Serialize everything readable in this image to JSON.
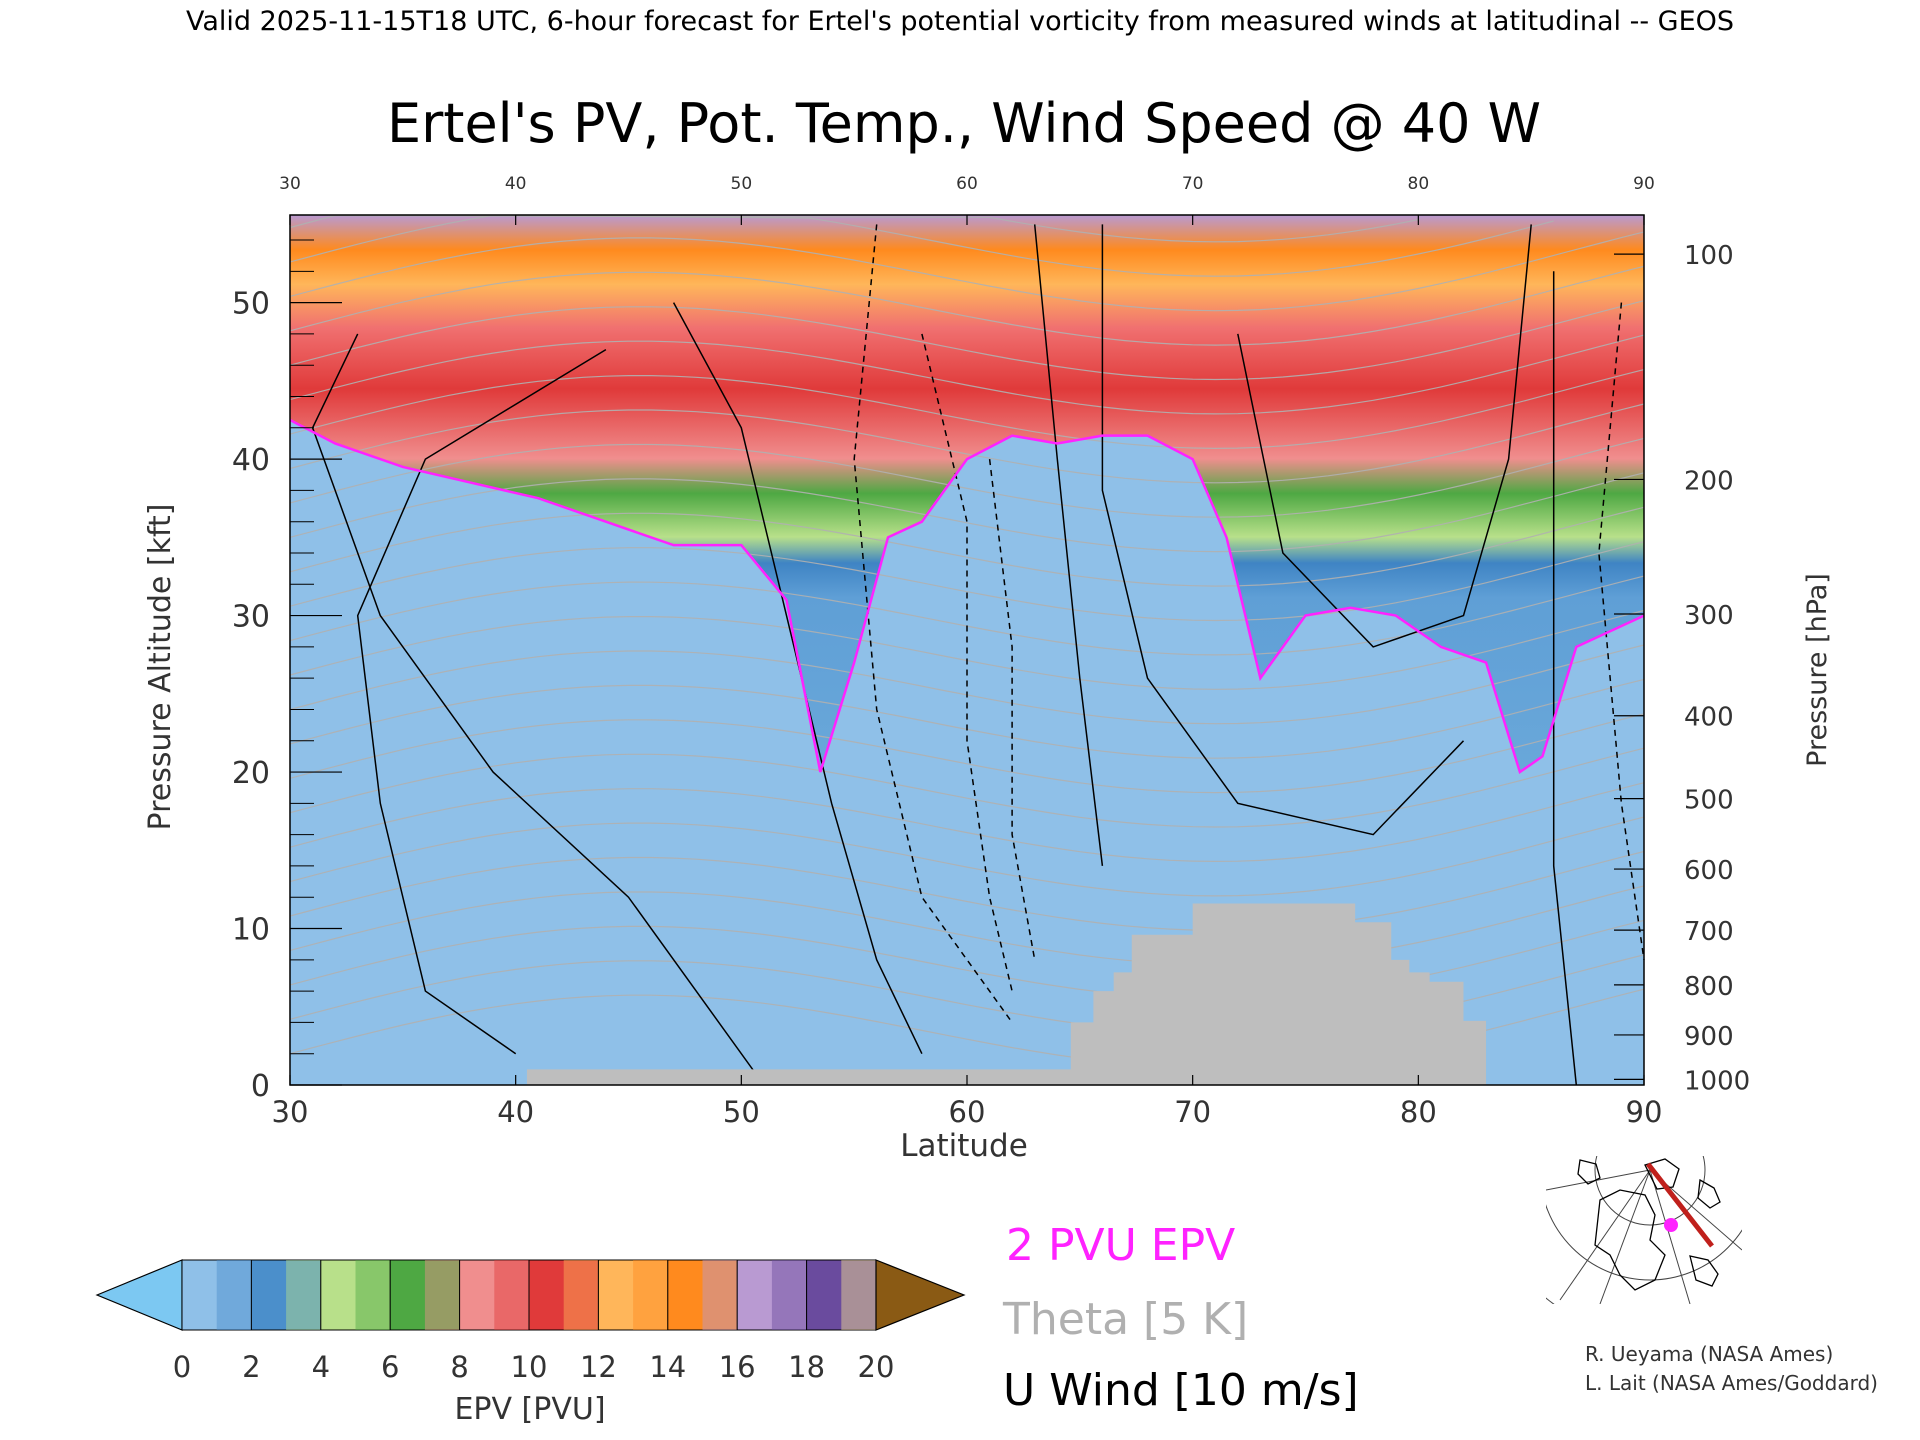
{
  "header": {
    "valid_line": "Valid 2025-11-15T18 UTC, 6-hour forecast for Ertel's potential vorticity from measured winds at latitudinal -- GEOS"
  },
  "chart_data": {
    "type": "heatmap",
    "title": "Ertel's PV, Pot. Temp., Wind Speed @ 40 W",
    "xlabel": "Latitude",
    "ylabel": "Pressure Altitude [kft]",
    "ylabel_right": "Pressure [hPa]",
    "x_range": [
      30,
      90
    ],
    "y_range": [
      0,
      55.6
    ],
    "x_ticks": [
      "30",
      "40",
      "50",
      "60",
      "70",
      "80",
      "90"
    ],
    "y_ticks": [
      "0",
      "10",
      "20",
      "30",
      "40",
      "50"
    ],
    "pressure_ticks": [
      "1000",
      "900",
      "800",
      "700",
      "600",
      "500",
      "400",
      "300",
      "200",
      "100"
    ],
    "pressure_tick_kft": [
      0.36,
      3.2,
      6.4,
      9.9,
      13.8,
      18.3,
      23.6,
      30.1,
      38.7,
      53.1
    ],
    "tropopause_2pvu_kft": {
      "lat": [
        30,
        32,
        35,
        38,
        41,
        44,
        47,
        50,
        52,
        53.5,
        55,
        56.5,
        58,
        60,
        62,
        64,
        66,
        68,
        70,
        71.5,
        73,
        75,
        77,
        79,
        81,
        83,
        84.5,
        85.5,
        87,
        88.5,
        90
      ],
      "kft": [
        42.5,
        41,
        39.5,
        38.5,
        37.5,
        36,
        34.5,
        34.5,
        31,
        20,
        27,
        35,
        36,
        40,
        41.5,
        41,
        41.5,
        41.5,
        40,
        35,
        26,
        30,
        30.5,
        30,
        28,
        27,
        20,
        21,
        28,
        29,
        30
      ]
    },
    "surface_terrain_kft": {
      "lat": [
        40.5,
        49.2,
        64.6,
        65.6,
        66.5,
        67.3,
        70.0,
        75.5,
        77.2,
        78.8,
        79.6,
        80.5,
        82.0,
        83.0
      ],
      "kft": [
        1.0,
        1.0,
        4.0,
        6.0,
        7.2,
        9.6,
        11.6,
        11.6,
        10.4,
        8.0,
        7.2,
        6.6,
        4.1,
        1.0
      ]
    },
    "colorbar": {
      "label": "EPV [PVU]",
      "ticks": [
        "0",
        "2",
        "4",
        "6",
        "8",
        "10",
        "12",
        "14",
        "16",
        "18",
        "20"
      ],
      "colors": [
        "#8fc0e8",
        "#4b8fcb",
        "#b8e08a",
        "#4ea843",
        "#f08e8e",
        "#e03a3a",
        "#ffb65a",
        "#ff8a1e",
        "#b99ad2",
        "#6a4b9e",
        "#f7e58f"
      ],
      "under_color": "#7cc8f2",
      "over_color": "#8a5a14"
    },
    "legend": {
      "pvu_label": "2 PVU EPV",
      "pvu_color": "#ff22ff",
      "theta_label": "Theta [5 K]",
      "theta_color": "#b0b0b0",
      "wind_label": "U Wind [10 m/s]",
      "wind_color": "#000000"
    },
    "credits": [
      "R. Ueyama (NASA Ames)",
      "L. Lait (NASA Ames/Goddard)"
    ]
  }
}
